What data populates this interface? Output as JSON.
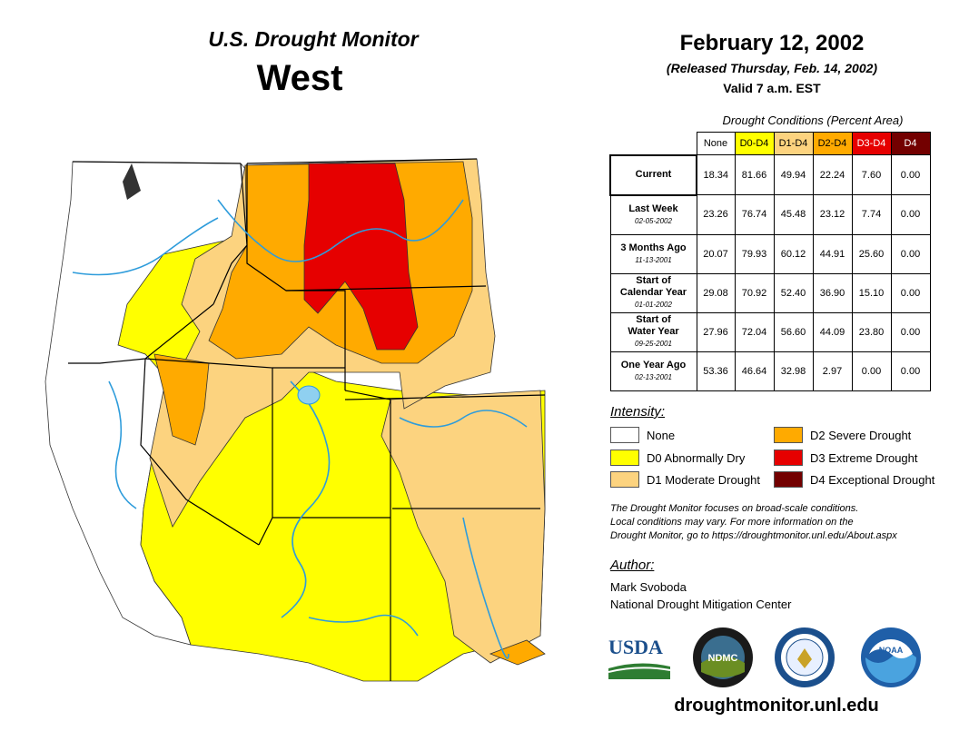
{
  "header": {
    "title": "U.S. Drought Monitor",
    "region": "West",
    "date": "February 12, 2002",
    "released": "(Released Thursday, Feb. 14, 2002)",
    "valid": "Valid 7 a.m. EST"
  },
  "table": {
    "caption": "Drought Conditions (Percent Area)",
    "columns": [
      "None",
      "D0-D4",
      "D1-D4",
      "D2-D4",
      "D3-D4",
      "D4"
    ],
    "rows": [
      {
        "label": "Current",
        "label2": "",
        "sublabel": "",
        "values": [
          "18.34",
          "81.66",
          "49.94",
          "22.24",
          "7.60",
          "0.00"
        ]
      },
      {
        "label": "Last Week",
        "label2": "",
        "sublabel": "02-05-2002",
        "values": [
          "23.26",
          "76.74",
          "45.48",
          "23.12",
          "7.74",
          "0.00"
        ]
      },
      {
        "label": "3 Months Ago",
        "label2": "",
        "sublabel": "11-13-2001",
        "values": [
          "20.07",
          "79.93",
          "60.12",
          "44.91",
          "25.60",
          "0.00"
        ]
      },
      {
        "label": "Start of",
        "label2": "Calendar Year",
        "sublabel": "01-01-2002",
        "values": [
          "29.08",
          "70.92",
          "52.40",
          "36.90",
          "15.10",
          "0.00"
        ]
      },
      {
        "label": "Start of",
        "label2": "Water Year",
        "sublabel": "09-25-2001",
        "values": [
          "27.96",
          "72.04",
          "56.60",
          "44.09",
          "23.80",
          "0.00"
        ]
      },
      {
        "label": "One Year Ago",
        "label2": "",
        "sublabel": "02-13-2001",
        "values": [
          "53.36",
          "46.64",
          "32.98",
          "2.97",
          "0.00",
          "0.00"
        ]
      }
    ]
  },
  "legend": {
    "title": "Intensity:",
    "items": [
      {
        "label": "None",
        "color": "#ffffff"
      },
      {
        "label": "D0 Abnormally Dry",
        "color": "#ffff00"
      },
      {
        "label": "D1 Moderate Drought",
        "color": "#fcd37f"
      },
      {
        "label": "D2 Severe Drought",
        "color": "#ffaa00"
      },
      {
        "label": "D3 Extreme Drought",
        "color": "#e60000"
      },
      {
        "label": "D4 Exceptional Drought",
        "color": "#730000"
      }
    ]
  },
  "note": {
    "line1": "The Drought Monitor focuses on broad-scale conditions.",
    "line2": "Local conditions may vary. For more information on the",
    "line3": "Drought Monitor, go to https://droughtmonitor.unl.edu/About.aspx"
  },
  "author": {
    "title": "Author:",
    "name": "Mark Svoboda",
    "org": "National Drought Mitigation Center"
  },
  "logos": {
    "usda": "USDA",
    "ndmc": "NDMC",
    "noaa": "NOAA"
  },
  "url": "droughtmonitor.unl.edu"
}
